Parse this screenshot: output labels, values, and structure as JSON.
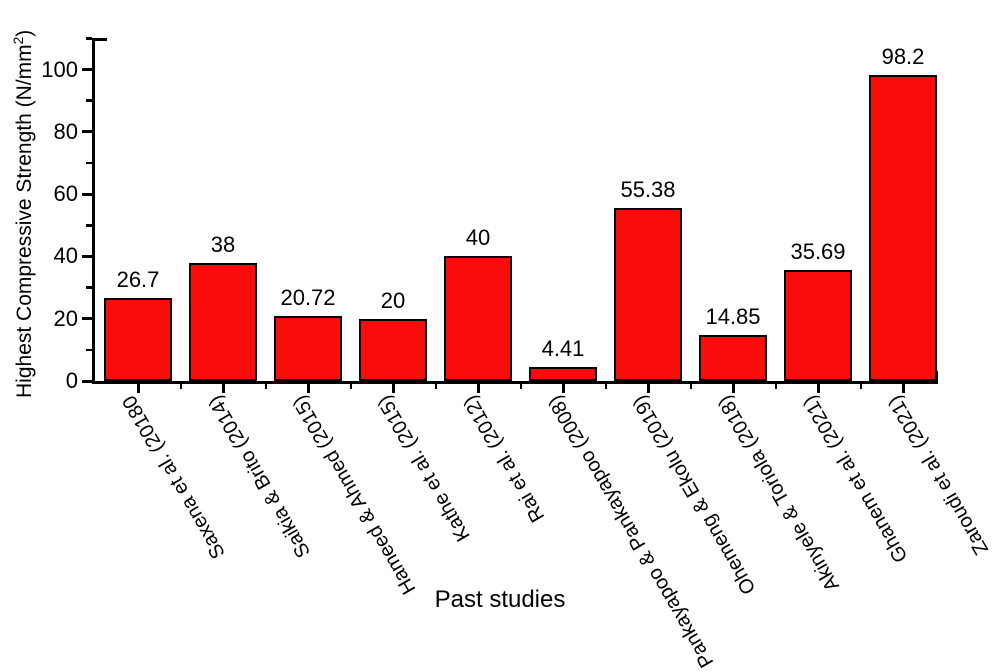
{
  "chart_data": {
    "type": "bar",
    "categories": [
      "Saxena et al. (20180",
      "Saikia & Brito (2014)",
      "Hameed & Ahmed (2015)",
      "Kathe et al. (2015)",
      "Rai et al. (2012)",
      "Pankayapoo & Pankayapoo (2008)",
      "Ohemeng & Ekolu (2019)",
      "Akinyele & Toriola (2018)",
      "Ghanem et al. (2021)",
      "Zaroudi et al. (2021)"
    ],
    "values": [
      26.7,
      38,
      20.72,
      20,
      40,
      4.41,
      55.38,
      14.85,
      35.69,
      98.2
    ],
    "value_labels": [
      "26.7",
      "38",
      "20.72",
      "20",
      "40",
      "4.41",
      "55.38",
      "14.85",
      "35.69",
      "98.2"
    ],
    "title": "",
    "xlabel": "Past studies",
    "ylabel_prefix": "Highest Compressive Strength (N/mm",
    "ylabel_sup": "2",
    "ylabel_suffix": ")",
    "yticks": [
      0,
      20,
      40,
      60,
      80,
      100
    ],
    "ytick_labels": [
      "0",
      "20",
      "40",
      "60",
      "80",
      "100"
    ],
    "yticks_minor": [
      10,
      30,
      50,
      70,
      90,
      110
    ],
    "ylim": [
      0,
      110
    ],
    "grid": "off",
    "legend": "none",
    "bar_color": "#f90d0a",
    "bar_border_color": "#000000",
    "axis_color": "#000000",
    "text_color": "#000000",
    "x_labels_rotated": true
  }
}
